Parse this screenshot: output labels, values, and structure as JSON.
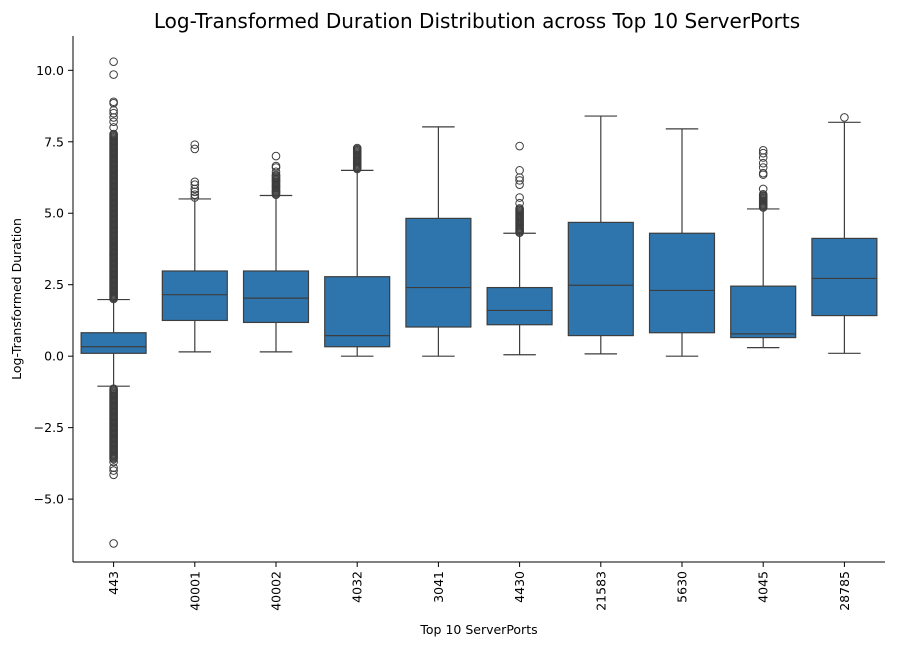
{
  "chart_data": {
    "type": "box",
    "title": "Log-Transformed Duration Distribution across Top 10 ServerPorts",
    "xlabel": "Top 10 ServerPorts",
    "ylabel": "Log-Transformed Duration",
    "ylim": [
      -7.2,
      11.2
    ],
    "yticks": [
      -5.0,
      -2.5,
      0.0,
      2.5,
      5.0,
      7.5,
      10.0
    ],
    "ytick_labels": [
      "−5.0",
      "−2.5",
      "0.0",
      "2.5",
      "5.0",
      "7.5",
      "10.0"
    ],
    "grid": false,
    "box_color": "#2e75ae",
    "line_color": "#3d3d3d",
    "categories": [
      "443",
      "40001",
      "40002",
      "4032",
      "3041",
      "4430",
      "21583",
      "5630",
      "4045",
      "28785"
    ],
    "boxes": [
      {
        "q1": 0.1,
        "median": 0.33,
        "q3": 0.82,
        "whisker_low": -1.05,
        "whisker_high": 1.98,
        "outlier_ranges": [
          [
            2.0,
            7.8
          ],
          [
            -3.6,
            -1.1
          ]
        ],
        "outliers": [
          8.0,
          8.2,
          8.35,
          8.5,
          8.6,
          8.85,
          8.9,
          9.85,
          10.3,
          -3.7,
          -3.9,
          -4.0,
          -4.15,
          -6.55
        ]
      },
      {
        "q1": 1.25,
        "median": 2.15,
        "q3": 2.98,
        "whisker_low": 0.15,
        "whisker_high": 5.5,
        "outlier_ranges": [],
        "outliers": [
          5.55,
          5.65,
          5.75,
          5.85,
          6.0,
          6.1,
          7.25,
          7.4
        ]
      },
      {
        "q1": 1.18,
        "median": 2.03,
        "q3": 2.98,
        "whisker_low": 0.15,
        "whisker_high": 5.62,
        "outlier_ranges": [
          [
            5.65,
            6.35
          ]
        ],
        "outliers": [
          6.45,
          6.6,
          6.65,
          7.0
        ]
      },
      {
        "q1": 0.33,
        "median": 0.72,
        "q3": 2.78,
        "whisker_low": 0.0,
        "whisker_high": 6.5,
        "outlier_ranges": [
          [
            6.55,
            7.3
          ]
        ],
        "outliers": []
      },
      {
        "q1": 1.02,
        "median": 2.4,
        "q3": 4.82,
        "whisker_low": 0.0,
        "whisker_high": 8.02,
        "outlier_ranges": [],
        "outliers": []
      },
      {
        "q1": 1.1,
        "median": 1.6,
        "q3": 2.4,
        "whisker_low": 0.05,
        "whisker_high": 4.3,
        "outlier_ranges": [
          [
            4.32,
            5.2
          ]
        ],
        "outliers": [
          5.35,
          5.55,
          6.0,
          6.15,
          6.25,
          6.5,
          7.35
        ]
      },
      {
        "q1": 0.72,
        "median": 2.48,
        "q3": 4.68,
        "whisker_low": 0.08,
        "whisker_high": 8.4,
        "outlier_ranges": [],
        "outliers": []
      },
      {
        "q1": 0.82,
        "median": 2.3,
        "q3": 4.3,
        "whisker_low": 0.0,
        "whisker_high": 7.95,
        "outlier_ranges": [],
        "outliers": []
      },
      {
        "q1": 0.65,
        "median": 0.78,
        "q3": 2.45,
        "whisker_low": 0.3,
        "whisker_high": 5.15,
        "outlier_ranges": [
          [
            5.2,
            5.7
          ]
        ],
        "outliers": [
          5.85,
          6.35,
          6.4,
          6.6,
          6.75,
          6.95,
          7.1,
          7.2
        ]
      },
      {
        "q1": 1.42,
        "median": 2.72,
        "q3": 4.12,
        "whisker_low": 0.1,
        "whisker_high": 8.18,
        "outlier_ranges": [],
        "outliers": [
          8.35
        ]
      }
    ]
  }
}
